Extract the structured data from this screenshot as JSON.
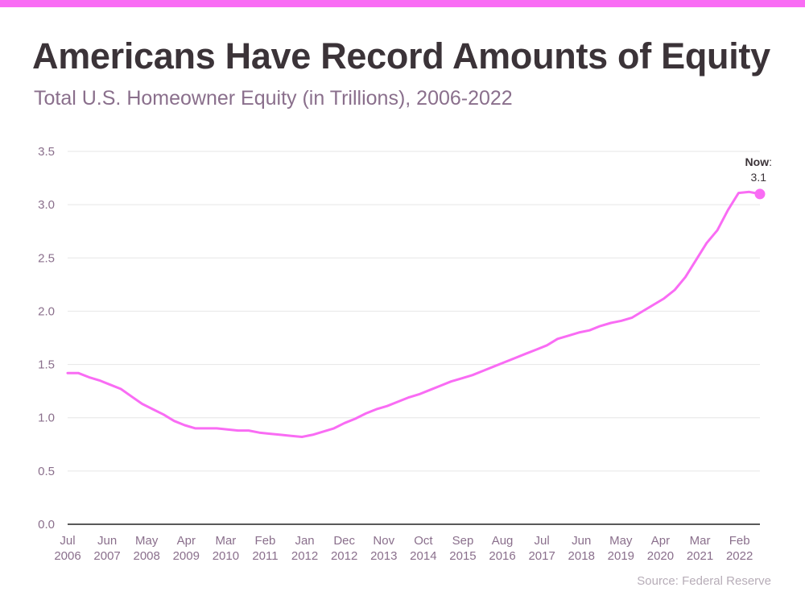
{
  "title": "Americans Have Record Amounts of Equity",
  "subtitle": "Total U.S. Homeowner Equity (in Trillions), 2006-2022",
  "source": "Source: Federal Reserve",
  "colors": {
    "accent": "#f96cf4",
    "title": "#3b3338",
    "label": "#8a6f8c",
    "grid": "#e6e6e6"
  },
  "chart_data": {
    "type": "line",
    "title": "Americans Have Record Amounts of Equity",
    "subtitle": "Total U.S. Homeowner Equity (in Trillions), 2006-2022",
    "xlabel": "",
    "ylabel": "",
    "ylim": [
      0,
      3.5
    ],
    "yticks": [
      "0.0",
      "0.5",
      "1.0",
      "1.5",
      "2.0",
      "2.5",
      "3.0",
      "3.5"
    ],
    "grid": true,
    "xticks": [
      {
        "month": "Jul",
        "year": "2006"
      },
      {
        "month": "Jun",
        "year": "2007"
      },
      {
        "month": "May",
        "year": "2008"
      },
      {
        "month": "Apr",
        "year": "2009"
      },
      {
        "month": "Mar",
        "year": "2010"
      },
      {
        "month": "Feb",
        "year": "2011"
      },
      {
        "month": "Jan",
        "year": "2012"
      },
      {
        "month": "Dec",
        "year": "2012"
      },
      {
        "month": "Nov",
        "year": "2013"
      },
      {
        "month": "Oct",
        "year": "2014"
      },
      {
        "month": "Sep",
        "year": "2015"
      },
      {
        "month": "Aug",
        "year": "2016"
      },
      {
        "month": "Jul",
        "year": "2017"
      },
      {
        "month": "Jun",
        "year": "2018"
      },
      {
        "month": "May",
        "year": "2019"
      },
      {
        "month": "Apr",
        "year": "2020"
      },
      {
        "month": "Mar",
        "year": "2021"
      },
      {
        "month": "Feb",
        "year": "2022"
      }
    ],
    "series": [
      {
        "color": "#f96cf4",
        "points": [
          [
            "2006-07",
            1.42
          ],
          [
            "2006-10",
            1.42
          ],
          [
            "2007-01",
            1.38
          ],
          [
            "2007-04",
            1.35
          ],
          [
            "2007-07",
            1.31
          ],
          [
            "2007-10",
            1.27
          ],
          [
            "2008-01",
            1.2
          ],
          [
            "2008-04",
            1.13
          ],
          [
            "2008-07",
            1.08
          ],
          [
            "2008-10",
            1.03
          ],
          [
            "2009-01",
            0.97
          ],
          [
            "2009-04",
            0.93
          ],
          [
            "2009-07",
            0.9
          ],
          [
            "2009-10",
            0.9
          ],
          [
            "2010-01",
            0.9
          ],
          [
            "2010-04",
            0.89
          ],
          [
            "2010-07",
            0.88
          ],
          [
            "2010-10",
            0.88
          ],
          [
            "2011-01",
            0.86
          ],
          [
            "2011-04",
            0.85
          ],
          [
            "2011-07",
            0.84
          ],
          [
            "2011-10",
            0.83
          ],
          [
            "2012-01",
            0.82
          ],
          [
            "2012-04",
            0.84
          ],
          [
            "2012-07",
            0.87
          ],
          [
            "2012-10",
            0.9
          ],
          [
            "2013-01",
            0.95
          ],
          [
            "2013-04",
            0.99
          ],
          [
            "2013-07",
            1.04
          ],
          [
            "2013-10",
            1.08
          ],
          [
            "2014-01",
            1.11
          ],
          [
            "2014-04",
            1.15
          ],
          [
            "2014-07",
            1.19
          ],
          [
            "2014-10",
            1.22
          ],
          [
            "2015-01",
            1.26
          ],
          [
            "2015-04",
            1.3
          ],
          [
            "2015-07",
            1.34
          ],
          [
            "2015-10",
            1.37
          ],
          [
            "2016-01",
            1.4
          ],
          [
            "2016-04",
            1.44
          ],
          [
            "2016-07",
            1.48
          ],
          [
            "2016-10",
            1.52
          ],
          [
            "2017-01",
            1.56
          ],
          [
            "2017-04",
            1.6
          ],
          [
            "2017-07",
            1.64
          ],
          [
            "2017-10",
            1.68
          ],
          [
            "2018-01",
            1.74
          ],
          [
            "2018-04",
            1.77
          ],
          [
            "2018-07",
            1.8
          ],
          [
            "2018-10",
            1.82
          ],
          [
            "2019-01",
            1.86
          ],
          [
            "2019-04",
            1.89
          ],
          [
            "2019-07",
            1.91
          ],
          [
            "2019-10",
            1.94
          ],
          [
            "2020-01",
            2.0
          ],
          [
            "2020-04",
            2.06
          ],
          [
            "2020-07",
            2.12
          ],
          [
            "2020-10",
            2.2
          ],
          [
            "2021-01",
            2.32
          ],
          [
            "2021-04",
            2.48
          ],
          [
            "2021-07",
            2.64
          ],
          [
            "2021-10",
            2.76
          ],
          [
            "2022-01",
            2.95
          ],
          [
            "2022-04",
            3.11
          ],
          [
            "2022-07",
            3.12
          ],
          [
            "2022-10",
            3.1
          ]
        ]
      }
    ],
    "annotation": {
      "label": "Now",
      "suffix": ":",
      "value": "3.1"
    }
  }
}
